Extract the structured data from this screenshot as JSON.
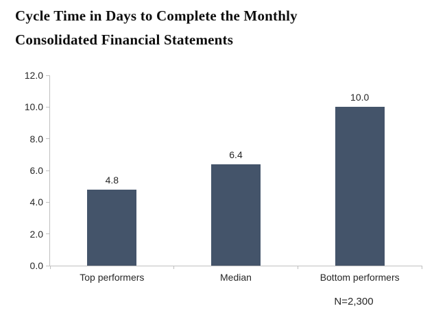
{
  "title": {
    "line1": "Cycle Time in Days to Complete the Monthly",
    "line2": "Consolidated Financial Statements"
  },
  "chart_data": {
    "type": "bar",
    "title": "Cycle Time in Days to Complete the Monthly Consolidated Financial Statements",
    "categories": [
      "Top performers",
      "Median",
      "Bottom performers"
    ],
    "values": [
      4.8,
      6.4,
      10.0
    ],
    "data_labels": [
      "4.8",
      "6.4",
      "10.0"
    ],
    "xlabel": "",
    "ylabel": "",
    "ylim": [
      0,
      12
    ],
    "ytick_step": 2,
    "ytick_labels": [
      "0.0",
      "2.0",
      "4.0",
      "6.0",
      "8.0",
      "10.0",
      "12.0"
    ],
    "grid": false,
    "legend": false,
    "annotation": "N=2,300",
    "colors": {
      "bar": "#44546A",
      "axis": "#BFBFBF",
      "text": "#262626",
      "title_text": "#0D0D0D",
      "background": "#FFFFFF"
    }
  }
}
